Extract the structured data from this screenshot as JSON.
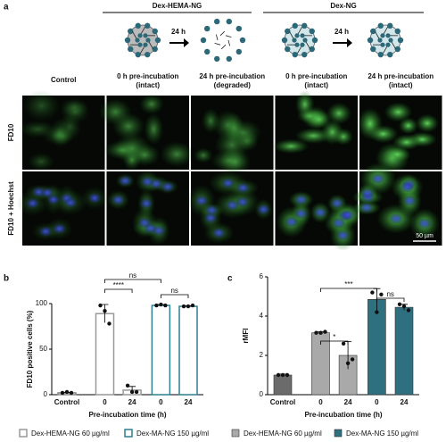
{
  "panel_a": {
    "label": "a",
    "groups": [
      "Dex-HEMA-NG",
      "Dex-NG"
    ],
    "arrow_labels": [
      "24 h",
      "24 h"
    ],
    "columns": [
      [
        "Control"
      ],
      [
        "0 h pre-incubation",
        "(intact)"
      ],
      [
        "24 h pre-incubation",
        "(degraded)"
      ],
      [
        "0 h pre-incubation",
        "(intact)"
      ],
      [
        "24 h pre-incubation",
        "(intact)"
      ]
    ],
    "rows": [
      "FD10",
      "FD10 + Hoechst"
    ],
    "scale_bar": "50 µm"
  },
  "chart_data": [
    {
      "type": "bar",
      "panel": "b",
      "bar_style": "outline",
      "ylabel": "FD10 positive cells (%)",
      "xlabel": "Pre-incubation time (h)",
      "categories": [
        "Control",
        "0",
        "24",
        "0",
        "24"
      ],
      "values": [
        2,
        89,
        5,
        98,
        97
      ],
      "errors": [
        0.5,
        10,
        4,
        1,
        0.5
      ],
      "points": [
        [
          2,
          3,
          2
        ],
        [
          98,
          92,
          78
        ],
        [
          10,
          3,
          3
        ],
        [
          98,
          99,
          98
        ],
        [
          97,
          97,
          98
        ]
      ],
      "bar_colors": [
        "#888888",
        "#999999",
        "#999999",
        "#2f7f91",
        "#2f7f91"
      ],
      "legend": [
        {
          "name": "Dex-HEMA-NG 60 µg/ml",
          "color": "#999999"
        },
        {
          "name": "Dex-MA-NG 150 µg/ml",
          "color": "#2f7f91"
        }
      ],
      "annotations": [
        "****",
        "ns",
        "ns"
      ],
      "ylim": [
        0,
        100
      ],
      "yticks": [
        0,
        50,
        100
      ]
    },
    {
      "type": "bar",
      "panel": "c",
      "bar_style": "filled",
      "ylabel": "rMFI",
      "xlabel": "Pre-incubation time (h)",
      "categories": [
        "Control",
        "0",
        "24",
        "0",
        "24"
      ],
      "values": [
        1.0,
        3.15,
        2.0,
        4.85,
        4.45
      ],
      "errors": [
        0.05,
        0.05,
        0.7,
        0.55,
        0.15
      ],
      "points": [
        [
          1,
          1,
          1
        ],
        [
          3.15,
          3.15,
          3.2
        ],
        [
          2.6,
          1.6,
          1.8
        ],
        [
          5.2,
          4.2,
          5.1
        ],
        [
          4.6,
          4.5,
          4.3
        ]
      ],
      "bar_colors": [
        "#6b6b6b",
        "#a9a9a9",
        "#a9a9a9",
        "#2e6f80",
        "#2e6f80"
      ],
      "legend": [
        {
          "name": "Dex-HEMA-NG 60 µg/ml",
          "color": "#a9a9a9"
        },
        {
          "name": "Dex-MA-NG 150 µg/ml",
          "color": "#2e6f80"
        }
      ],
      "annotations": [
        "*",
        "***",
        "ns"
      ],
      "ylim": [
        0,
        6
      ],
      "yticks": [
        0,
        2,
        4,
        6
      ]
    }
  ]
}
